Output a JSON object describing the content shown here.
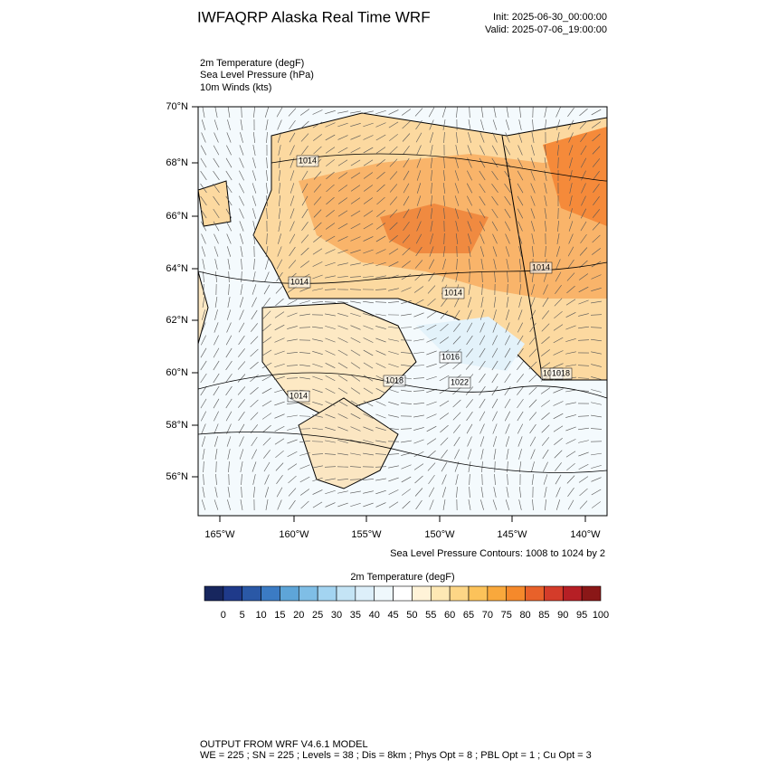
{
  "header": {
    "title": "IWFAQRP Alaska Real Time WRF",
    "init": "Init: 2025-06-30_00:00:00",
    "valid": "Valid: 2025-07-06_19:00:00"
  },
  "fields": [
    "2m Temperature   (degF)",
    "Sea Level Pressure   (hPa)",
    "10m Winds   (kts)"
  ],
  "map": {
    "lat_labels": [
      "70°N",
      "68°N",
      "66°N",
      "64°N",
      "62°N",
      "60°N",
      "58°N",
      "56°N"
    ],
    "lon_labels": [
      "165°W",
      "160°W",
      "155°W",
      "150°W",
      "145°W",
      "140°W"
    ],
    "contour_labels": [
      "1014",
      "1014",
      "1014",
      "1014",
      "1014",
      "1016",
      "1018",
      "1022",
      "1018",
      "1018"
    ],
    "contour_note": "Sea Level Pressure Contours: 1008 to 1024 by 2"
  },
  "colorbar": {
    "title": "2m Temperature  (degF)",
    "colors": [
      "#17265e",
      "#1f3a8a",
      "#2a58a6",
      "#3b7bc4",
      "#5ea5d8",
      "#7fbee6",
      "#a3d4f1",
      "#c4e4f5",
      "#ddeffa",
      "#eff8fc",
      "#ffffff",
      "#fff3d8",
      "#fee8b4",
      "#fdd686",
      "#fcc25a",
      "#f9a83c",
      "#f5892b",
      "#e8612a",
      "#d43c2a",
      "#b61f25",
      "#8a1717"
    ],
    "labels": [
      "0",
      "5",
      "10",
      "15",
      "20",
      "25",
      "30",
      "35",
      "40",
      "45",
      "50",
      "55",
      "60",
      "65",
      "70",
      "75",
      "80",
      "85",
      "90",
      "95",
      "100"
    ]
  },
  "footer": [
    "OUTPUT FROM WRF V4.6.1 MODEL",
    "WE = 225 ; SN = 225 ; Levels = 38 ; Dis = 8km ; Phys Opt = 8 ; PBL Opt = 1 ; Cu Opt = 3"
  ]
}
